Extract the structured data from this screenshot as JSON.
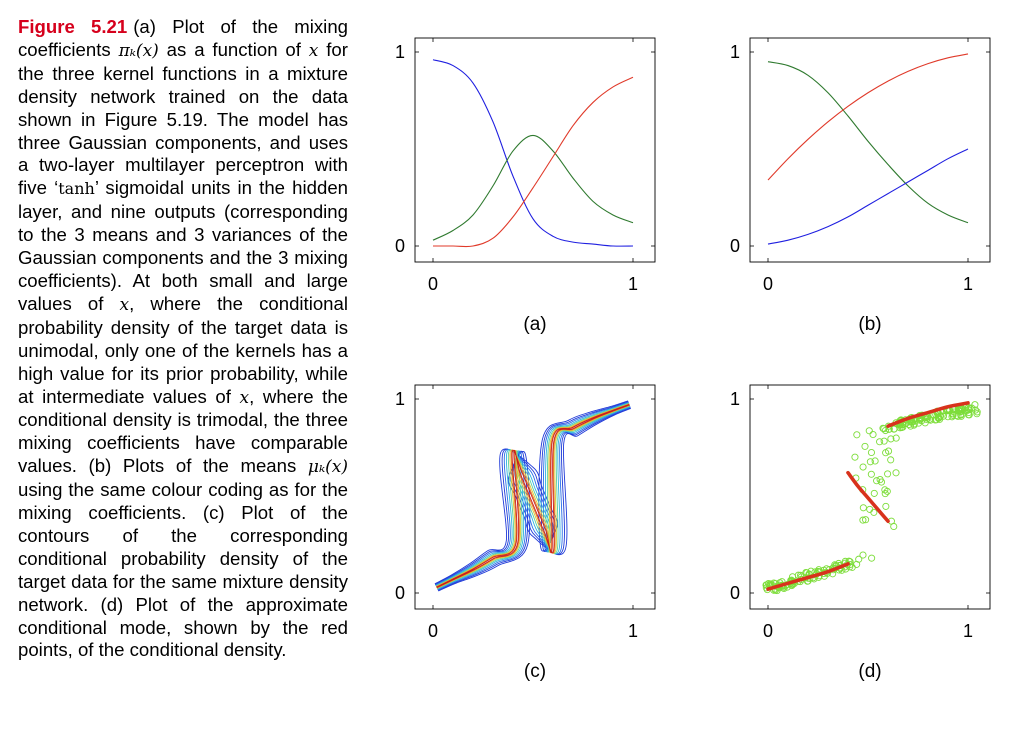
{
  "caption": {
    "label": "Figure 5.21",
    "parts": [
      {
        "t": "text",
        "v": "(a) Plot of the mixing coefficients "
      },
      {
        "t": "math",
        "v": "πₖ(x)"
      },
      {
        "t": "text",
        "v": " as a function of "
      },
      {
        "t": "math",
        "v": "x"
      },
      {
        "t": "text",
        "v": " for the three kernel functions in a mixture density network trained on the data shown in Figure 5.19. The model has three Gaussian components, and uses a two-layer multilayer perceptron with five ‘"
      },
      {
        "t": "mathrm",
        "v": "tanh"
      },
      {
        "t": "text",
        "v": "’ sigmoidal units in the hidden layer, and nine outputs (corresponding to the 3 means and 3 variances of the Gaussian components and the 3 mixing coefficients). At both small and large values of "
      },
      {
        "t": "math",
        "v": "x"
      },
      {
        "t": "text",
        "v": ", where the conditional probability density of the target data is unimodal, only one of the kernels has a high value for its prior probability, while at intermediate values of "
      },
      {
        "t": "math",
        "v": "x"
      },
      {
        "t": "text",
        "v": ", where the conditional density is trimodal, the three mixing coefficients have comparable values. (b) Plots of the means "
      },
      {
        "t": "math",
        "v": "μₖ(x)"
      },
      {
        "t": "text",
        "v": " using the same colour coding as for the mixing coefficients. (c) Plot of the contours of the corresponding conditional probability density of the target data for the same mixture density network. (d) Plot of the approximate conditional mode, shown by the red points, of the conditional density."
      }
    ]
  },
  "colors": {
    "blue": "#1f1fe0",
    "green": "#2f7a2f",
    "red": "#e03a2a",
    "mode_red": "#d8321c",
    "data_green": "#7ddd3a"
  },
  "chart_data": [
    {
      "id": "a",
      "type": "line",
      "panel_label": "(a)",
      "xlim": [
        0,
        1
      ],
      "ylim": [
        0,
        1
      ],
      "xticks": [
        "0",
        "1"
      ],
      "yticks": [
        "0",
        "1"
      ],
      "x": [
        0,
        0.1,
        0.2,
        0.3,
        0.4,
        0.5,
        0.6,
        0.7,
        0.8,
        0.9,
        1
      ],
      "series": [
        {
          "color": "blue",
          "values": [
            0.96,
            0.93,
            0.84,
            0.64,
            0.36,
            0.14,
            0.05,
            0.02,
            0.01,
            0.0,
            0.0
          ]
        },
        {
          "color": "green",
          "values": [
            0.03,
            0.08,
            0.16,
            0.31,
            0.49,
            0.57,
            0.49,
            0.35,
            0.23,
            0.16,
            0.12
          ]
        },
        {
          "color": "red",
          "values": [
            0.0,
            0.0,
            0.0,
            0.04,
            0.15,
            0.3,
            0.46,
            0.62,
            0.74,
            0.82,
            0.87
          ]
        }
      ]
    },
    {
      "id": "b",
      "type": "line",
      "panel_label": "(b)",
      "xlim": [
        0,
        1
      ],
      "ylim": [
        0,
        1
      ],
      "xticks": [
        "0",
        "1"
      ],
      "yticks": [
        "0",
        "1"
      ],
      "x": [
        0,
        0.1,
        0.2,
        0.3,
        0.4,
        0.5,
        0.6,
        0.7,
        0.8,
        0.9,
        1
      ],
      "series": [
        {
          "color": "green",
          "values": [
            0.95,
            0.93,
            0.88,
            0.79,
            0.67,
            0.54,
            0.42,
            0.31,
            0.22,
            0.16,
            0.12
          ]
        },
        {
          "color": "red",
          "values": [
            0.34,
            0.45,
            0.55,
            0.64,
            0.72,
            0.79,
            0.85,
            0.9,
            0.94,
            0.97,
            0.99
          ]
        },
        {
          "color": "blue",
          "values": [
            0.01,
            0.03,
            0.06,
            0.1,
            0.15,
            0.21,
            0.27,
            0.33,
            0.39,
            0.45,
            0.5
          ]
        }
      ]
    },
    {
      "id": "c",
      "type": "contour",
      "panel_label": "(c)",
      "xlim": [
        0,
        1
      ],
      "ylim": [
        0,
        1
      ],
      "xticks": [
        "0",
        "1"
      ],
      "yticks": [
        "0",
        "1"
      ],
      "branches": [
        {
          "x": [
            0.02,
            0.1,
            0.2,
            0.3,
            0.42
          ],
          "y": [
            0.03,
            0.07,
            0.12,
            0.18,
            0.26
          ]
        },
        {
          "x": [
            0.4,
            0.44,
            0.48,
            0.52,
            0.56,
            0.6
          ],
          "y": [
            0.72,
            0.62,
            0.52,
            0.42,
            0.32,
            0.23
          ]
        },
        {
          "x": [
            0.6,
            0.7,
            0.8,
            0.9,
            0.98
          ],
          "y": [
            0.78,
            0.85,
            0.9,
            0.94,
            0.97
          ]
        }
      ]
    },
    {
      "id": "d",
      "type": "scatter",
      "panel_label": "(d)",
      "xlim": [
        0,
        1
      ],
      "ylim": [
        0,
        1
      ],
      "xticks": [
        "0",
        "1"
      ],
      "yticks": [
        "0",
        "1"
      ],
      "mode_curves": [
        {
          "x": [
            0.0,
            0.1,
            0.2,
            0.3,
            0.4
          ],
          "y": [
            0.02,
            0.05,
            0.08,
            0.11,
            0.15
          ]
        },
        {
          "x": [
            0.4,
            0.45,
            0.5,
            0.55,
            0.6
          ],
          "y": [
            0.62,
            0.55,
            0.49,
            0.43,
            0.37
          ]
        },
        {
          "x": [
            0.6,
            0.7,
            0.8,
            0.9,
            1.0
          ],
          "y": [
            0.86,
            0.9,
            0.93,
            0.96,
            0.98
          ]
        }
      ]
    }
  ]
}
